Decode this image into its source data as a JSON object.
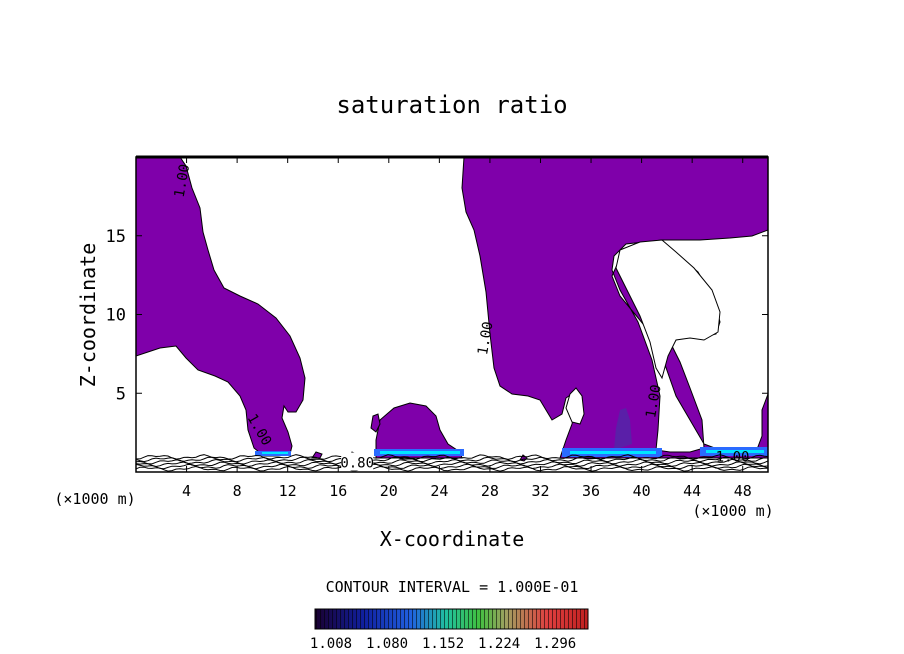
{
  "chart_data": {
    "type": "contour",
    "title": "saturation ratio",
    "xlabel": "X-coordinate",
    "ylabel": "Z-coordinate",
    "x_unit": "(×1000 m)",
    "x_unit_right": "(×1000 m)",
    "xlim": [
      0,
      50
    ],
    "ylim": [
      0,
      20
    ],
    "x_ticks": [
      4,
      8,
      12,
      16,
      20,
      24,
      28,
      32,
      36,
      40,
      44,
      48
    ],
    "y_ticks": [
      5,
      10,
      15
    ],
    "contour_labels": [
      {
        "text": "1.00",
        "x": 3.6,
        "y": 18.5
      },
      {
        "text": "1.00",
        "x": 9.8,
        "y": 2.7
      },
      {
        "text": "1.00",
        "x": 27.6,
        "y": 8.5
      },
      {
        "text": "1.00",
        "x": 40.9,
        "y": 4.5
      },
      {
        "text": "1.00",
        "x": 47.2,
        "y": 1.0
      },
      {
        "text": "0.80",
        "x": 17.5,
        "y": 0.6
      }
    ],
    "contour_interval_text": "CONTOUR INTERVAL = 1.000E-01",
    "colorbar": {
      "min": 1.008,
      "max": 1.332,
      "tick_labels": [
        "1.008",
        "1.080",
        "1.152",
        "1.224",
        "1.296"
      ]
    },
    "colors": {
      "fill": "#7f00aa",
      "contour_line": "#000000",
      "high_band": "#00e6ff",
      "mid_band": "#2a6bff"
    },
    "grid": false,
    "legend": "none"
  }
}
